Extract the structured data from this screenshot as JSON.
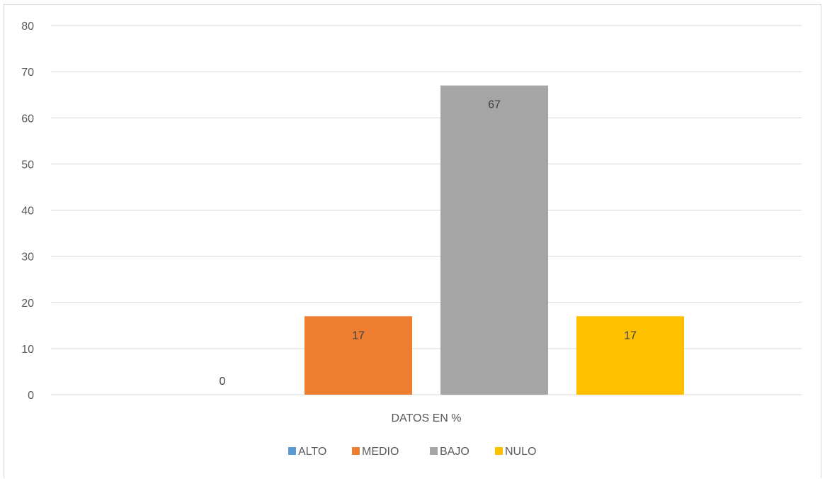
{
  "chart_data": {
    "type": "bar",
    "categories": [
      "DATOS EN %"
    ],
    "series": [
      {
        "name": "ALTO",
        "values": [
          0
        ],
        "color": "#5B9BD5"
      },
      {
        "name": "MEDIO",
        "values": [
          17
        ],
        "color": "#ED7D31"
      },
      {
        "name": "BAJO",
        "values": [
          67
        ],
        "color": "#A5A5A5"
      },
      {
        "name": "NULO",
        "values": [
          17
        ],
        "color": "#FFC000"
      }
    ],
    "ylim": [
      0,
      80
    ],
    "yticks": [
      0,
      10,
      20,
      30,
      40,
      50,
      60,
      70,
      80
    ],
    "grid": true,
    "data_labels": true,
    "legend": "bottom"
  }
}
